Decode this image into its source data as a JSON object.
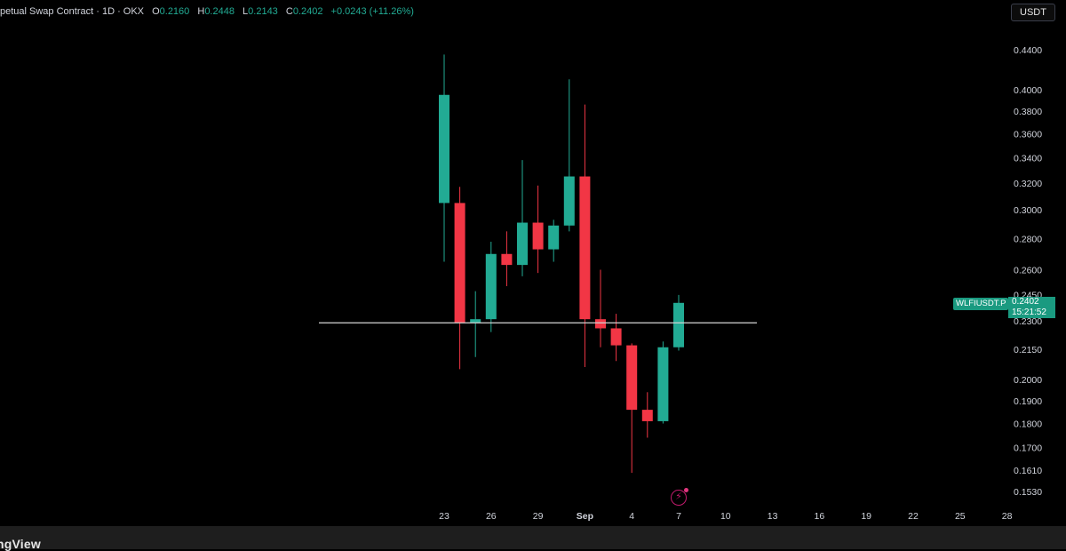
{
  "legend": {
    "title": "petual Swap Contract · 1D · OKX",
    "open_label": "O",
    "open": "0.2160",
    "high_label": "H",
    "high": "0.2448",
    "low_label": "L",
    "low": "0.2143",
    "close_label": "C",
    "close": "0.2402",
    "change": "+0.0243 (+11.26%)"
  },
  "currency_button": "USDT",
  "symbol_tag": "WLFIUSDT.P",
  "last_price": "0.2402",
  "countdown": "15:21:52",
  "footer": {
    "logo_text": "ngView"
  },
  "event_icon": "lightning-icon",
  "colors": {
    "up": "#22ab94",
    "down": "#f23645",
    "background": "#000000",
    "text": "#d1d4dc",
    "horizontal_line": "#d6d6d6",
    "price_tag": "#1a9a80"
  },
  "chart_data": {
    "type": "candlestick",
    "interval": "1D",
    "y_scale": "log",
    "y_ticks": [
      "0.4400",
      "0.4000",
      "0.3800",
      "0.3600",
      "0.3400",
      "0.3200",
      "0.3000",
      "0.2800",
      "0.2600",
      "0.2450",
      "0.2300",
      "0.2150",
      "0.2000",
      "0.1900",
      "0.1800",
      "0.1700",
      "0.1610",
      "0.1530"
    ],
    "x_ticks": [
      "23",
      "26",
      "29",
      "Sep",
      "4",
      "7",
      "10",
      "13",
      "16",
      "19",
      "22",
      "25",
      "28"
    ],
    "x_tick_dates": [
      "08-23",
      "08-26",
      "08-29",
      "09-01",
      "09-04",
      "09-07",
      "09-10",
      "09-13",
      "09-16",
      "09-19",
      "09-22",
      "09-25",
      "09-28"
    ],
    "horizontal_line": 0.229,
    "candles": [
      {
        "date": "08-23",
        "open": 0.305,
        "high": 0.435,
        "low": 0.265,
        "close": 0.395
      },
      {
        "date": "08-24",
        "open": 0.305,
        "high": 0.317,
        "low": 0.205,
        "close": 0.229
      },
      {
        "date": "08-25",
        "open": 0.229,
        "high": 0.247,
        "low": 0.211,
        "close": 0.231
      },
      {
        "date": "08-26",
        "open": 0.231,
        "high": 0.278,
        "low": 0.224,
        "close": 0.27
      },
      {
        "date": "08-27",
        "open": 0.27,
        "high": 0.285,
        "low": 0.25,
        "close": 0.263
      },
      {
        "date": "08-28",
        "open": 0.263,
        "high": 0.338,
        "low": 0.256,
        "close": 0.291
      },
      {
        "date": "08-29",
        "open": 0.291,
        "high": 0.318,
        "low": 0.258,
        "close": 0.273
      },
      {
        "date": "08-30",
        "open": 0.273,
        "high": 0.293,
        "low": 0.265,
        "close": 0.289
      },
      {
        "date": "08-31",
        "open": 0.289,
        "high": 0.41,
        "low": 0.285,
        "close": 0.325
      },
      {
        "date": "09-01",
        "open": 0.325,
        "high": 0.386,
        "low": 0.206,
        "close": 0.231
      },
      {
        "date": "09-02",
        "open": 0.231,
        "high": 0.26,
        "low": 0.216,
        "close": 0.226
      },
      {
        "date": "09-03",
        "open": 0.226,
        "high": 0.234,
        "low": 0.209,
        "close": 0.217
      },
      {
        "date": "09-04",
        "open": 0.217,
        "high": 0.218,
        "low": 0.16,
        "close": 0.186
      },
      {
        "date": "09-05",
        "open": 0.186,
        "high": 0.194,
        "low": 0.174,
        "close": 0.181
      },
      {
        "date": "09-06",
        "open": 0.181,
        "high": 0.219,
        "low": 0.18,
        "close": 0.216
      },
      {
        "date": "09-07",
        "open": 0.216,
        "high": 0.2448,
        "low": 0.2143,
        "close": 0.2402
      }
    ]
  }
}
